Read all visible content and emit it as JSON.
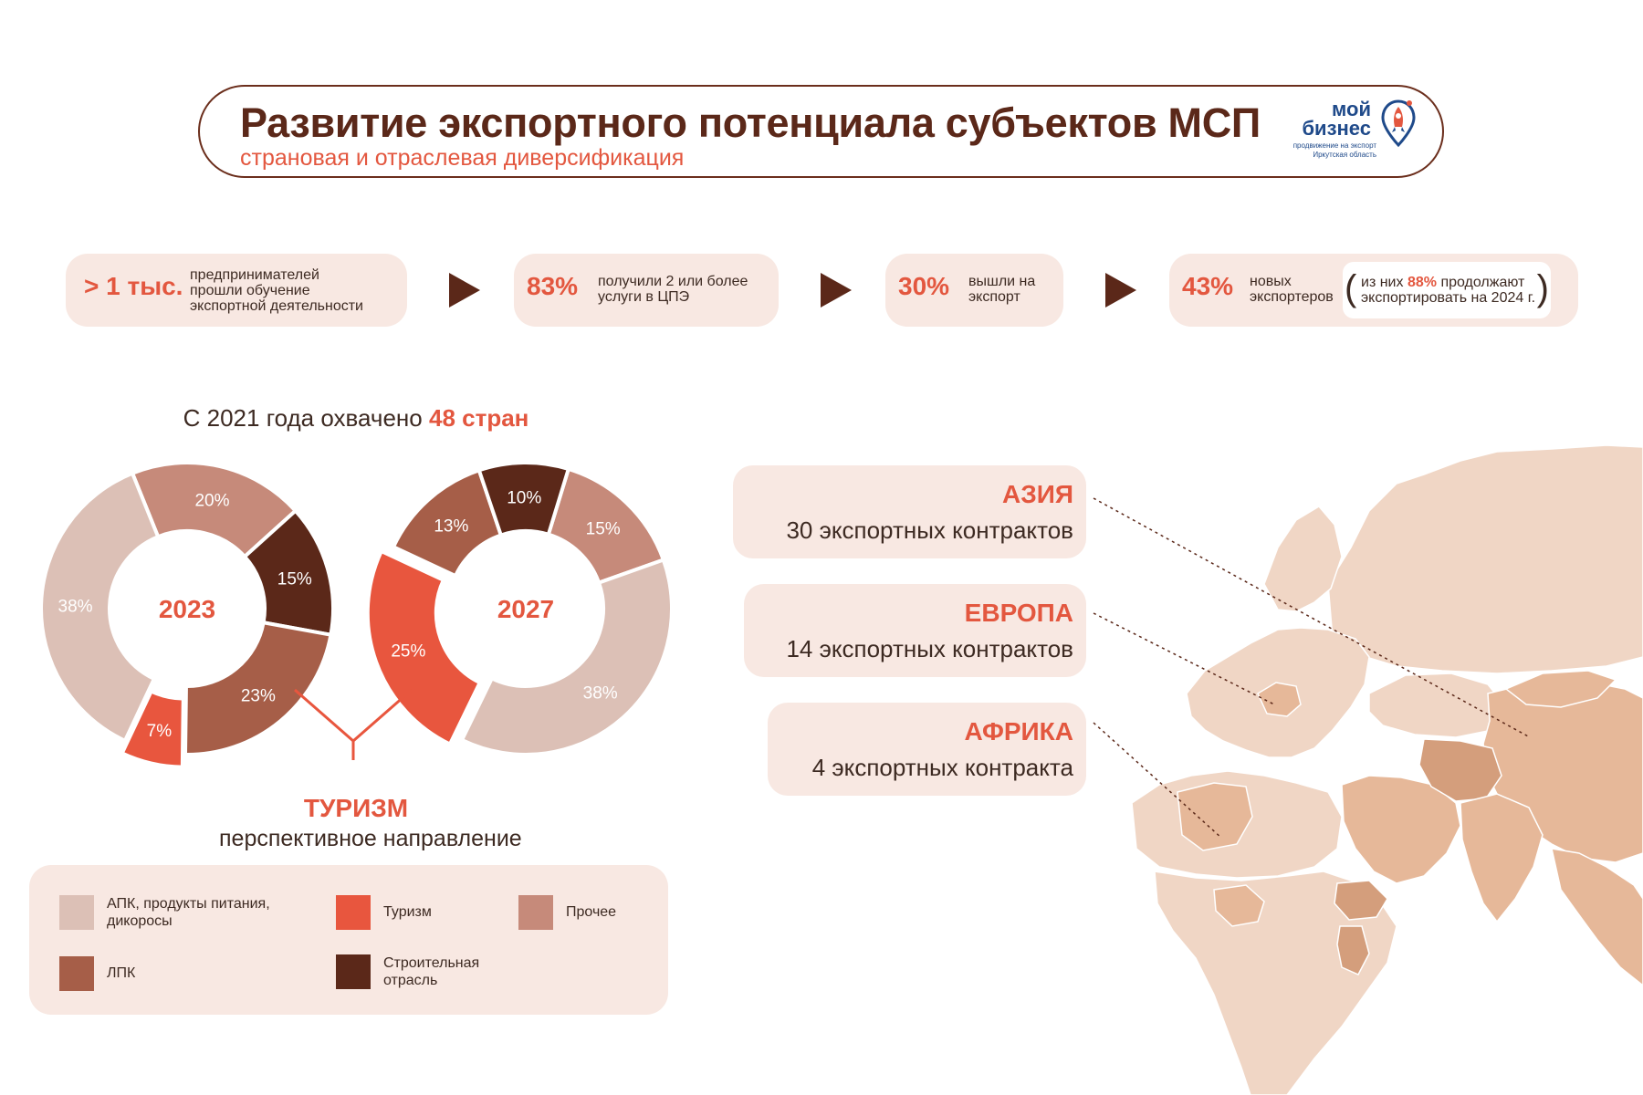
{
  "header": {
    "title": "Развитие экспортного потенциала субъектов МСП",
    "subtitle": "страновая и отраслевая диверсификация",
    "logo": {
      "line1": "мой",
      "line2": "бизнес",
      "line3": "продвижение на экспорт",
      "line4": "Иркутская область"
    }
  },
  "stats": [
    {
      "value": "> 1 тыс.",
      "desc_lines": [
        "предпринимателей",
        "прошли обучение",
        "экспортной деятельности"
      ]
    },
    {
      "value": "83%",
      "desc_lines": [
        "получили 2 или более",
        "услуги в ЦПЭ"
      ]
    },
    {
      "value": "30%",
      "desc_lines": [
        "вышли на",
        "экспорт"
      ]
    },
    {
      "value": "43%",
      "desc_lines": [
        "новых",
        "экспортеров"
      ],
      "note": {
        "prefix": "из них",
        "highlight": "88%",
        "suffix": "продолжают",
        "line2": "экспортировать на 2024 г."
      }
    }
  ],
  "countries": {
    "prefix": "С 2021 года охвачено",
    "highlight": "48 стран"
  },
  "tourism": {
    "title": "ТУРИЗМ",
    "subtitle": "перспективное направление"
  },
  "colors": {
    "apk": "#dcc0b6",
    "tourism": "#e8563e",
    "other": "#c68a7a",
    "lpk": "#a65e48",
    "construction": "#5b2819",
    "accent": "#e3573f",
    "dark": "#5b2819",
    "panel": "#f8e8e2",
    "land": "#e6b899",
    "land_light": "#f0d6c5",
    "land_dark": "#d49e7c"
  },
  "chart_data": [
    {
      "type": "pie",
      "center_label": "2023",
      "slices": [
        {
          "category": "Прочее",
          "value": 20,
          "label": "20%"
        },
        {
          "category": "Строительная отрасль",
          "value": 15,
          "label": "15%"
        },
        {
          "category": "ЛПК",
          "value": 23,
          "label": "23%"
        },
        {
          "category": "Туризм",
          "value": 7,
          "label": "7%"
        },
        {
          "category": "АПК, продукты питания, дикоросы",
          "value": 38,
          "label": "38%"
        }
      ]
    },
    {
      "type": "pie",
      "center_label": "2027",
      "slices": [
        {
          "category": "Прочее",
          "value": 15,
          "label": "15%"
        },
        {
          "category": "АПК, продукты питания, дикоросы",
          "value": 38,
          "label": "38%"
        },
        {
          "category": "Туризм",
          "value": 25,
          "label": "25%"
        },
        {
          "category": "ЛПК",
          "value": 13,
          "label": "13%"
        },
        {
          "category": "Строительная отрасль",
          "value": 10,
          "label": "10%"
        }
      ]
    }
  ],
  "legend": [
    {
      "label": "АПК, продукты питания, дикоросы",
      "color_key": "apk"
    },
    {
      "label": "Туризм",
      "color_key": "tourism"
    },
    {
      "label": "Прочее",
      "color_key": "other"
    },
    {
      "label": "ЛПК",
      "color_key": "lpk"
    },
    {
      "label": "Строительная отрасль",
      "color_key": "construction"
    }
  ],
  "regions": [
    {
      "name": "АЗИЯ",
      "contracts": "30 экспортных контрактов"
    },
    {
      "name": "ЕВРОПА",
      "contracts": "14 экспортных контрактов"
    },
    {
      "name": "АФРИКА",
      "contracts": "4 экспортных контракта"
    }
  ]
}
